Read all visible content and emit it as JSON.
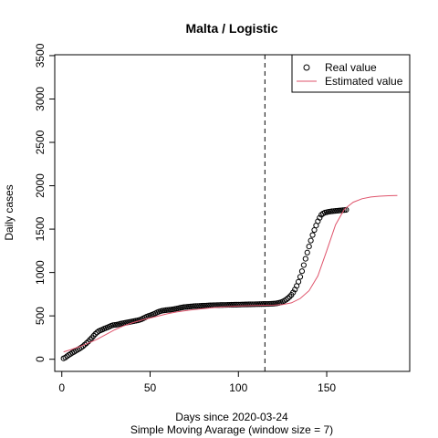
{
  "chart_data": {
    "type": "line",
    "title": "Malta / Logistic",
    "xlabel": "Days since 2020-03-24",
    "subtitle": "Simple Moving Avarage (window size = 7)",
    "ylabel": "Daily cases",
    "xlim": [
      -4,
      197
    ],
    "ylim": [
      -140,
      3510
    ],
    "x_ticks": [
      0,
      50,
      100,
      150
    ],
    "y_ticks": [
      0,
      500,
      1000,
      1500,
      2000,
      2500,
      3000,
      3500
    ],
    "vline_x": 115,
    "legend_position": "top-right",
    "grid": false,
    "series": [
      {
        "name": "Real value",
        "marker": "open-circle",
        "color": "#000000",
        "x": [
          1,
          2,
          3,
          4,
          5,
          6,
          7,
          8,
          9,
          10,
          11,
          12,
          13,
          14,
          15,
          16,
          17,
          18,
          19,
          20,
          21,
          22,
          23,
          24,
          25,
          26,
          27,
          28,
          29,
          30,
          31,
          32,
          33,
          34,
          35,
          36,
          37,
          38,
          39,
          40,
          41,
          42,
          43,
          44,
          45,
          46,
          47,
          48,
          49,
          50,
          51,
          52,
          53,
          54,
          55,
          56,
          57,
          58,
          59,
          60,
          61,
          62,
          63,
          64,
          65,
          66,
          67,
          68,
          69,
          70,
          71,
          72,
          73,
          74,
          75,
          76,
          77,
          78,
          79,
          80,
          81,
          82,
          83,
          84,
          85,
          86,
          87,
          88,
          89,
          90,
          91,
          92,
          93,
          94,
          95,
          96,
          97,
          98,
          99,
          100,
          101,
          102,
          103,
          104,
          105,
          106,
          107,
          108,
          109,
          110,
          111,
          112,
          113,
          114,
          115,
          116,
          117,
          118,
          119,
          120,
          121,
          122,
          123,
          124,
          125,
          126,
          127,
          128,
          129,
          130,
          131,
          132,
          133,
          134,
          135,
          136,
          137,
          138,
          139,
          140,
          141,
          142,
          143,
          144,
          145,
          146,
          147,
          148,
          149,
          150,
          151,
          152,
          153,
          154,
          155,
          156,
          157,
          158,
          159,
          160,
          161
        ],
        "y": [
          10,
          20,
          35,
          50,
          62,
          75,
          86,
          98,
          110,
          122,
          135,
          150,
          168,
          186,
          204,
          226,
          246,
          270,
          292,
          310,
          325,
          334,
          342,
          352,
          360,
          368,
          377,
          386,
          393,
          396,
          398,
          402,
          408,
          412,
          416,
          420,
          424,
          428,
          432,
          436,
          440,
          444,
          448,
          453,
          460,
          470,
          480,
          490,
          498,
          505,
          512,
          520,
          530,
          540,
          548,
          555,
          560,
          563,
          566,
          568,
          570,
          573,
          576,
          580,
          584,
          588,
          592,
          596,
          600,
          602,
          604,
          606,
          608,
          610,
          612,
          613,
          614,
          615,
          616,
          617,
          618,
          619,
          620,
          621,
          622,
          623,
          623,
          624,
          624,
          625,
          625,
          626,
          626,
          627,
          627,
          628,
          628,
          629,
          629,
          630,
          630,
          631,
          631,
          632,
          632,
          633,
          633,
          634,
          634,
          635,
          635,
          636,
          636,
          637,
          637,
          638,
          638,
          639,
          640,
          641,
          643,
          646,
          650,
          656,
          664,
          674,
          687,
          702,
          720,
          742,
          770,
          804,
          845,
          893,
          950,
          1015,
          1085,
          1158,
          1230,
          1300,
          1368,
          1432,
          1490,
          1542,
          1590,
          1630,
          1665,
          1680,
          1690,
          1695,
          1700,
          1703,
          1706,
          1708,
          1710,
          1712,
          1714,
          1716,
          1718,
          1720,
          1722
        ]
      },
      {
        "name": "Estimated value",
        "color": "#DF536B",
        "x": [
          1,
          5,
          10,
          15,
          20,
          25,
          30,
          35,
          40,
          45,
          50,
          55,
          60,
          65,
          70,
          75,
          80,
          85,
          90,
          95,
          100,
          105,
          110,
          115,
          120,
          125,
          130,
          135,
          140,
          145,
          150,
          155,
          160,
          165,
          170,
          175,
          180,
          185,
          190
        ],
        "y": [
          85,
          110,
          145,
          185,
          230,
          285,
          340,
          385,
          420,
          450,
          475,
          500,
          525,
          545,
          560,
          572,
          583,
          593,
          601,
          608,
          613,
          617,
          620,
          622,
          624,
          630,
          650,
          700,
          790,
          960,
          1250,
          1550,
          1730,
          1810,
          1850,
          1870,
          1880,
          1885,
          1888
        ]
      }
    ]
  }
}
